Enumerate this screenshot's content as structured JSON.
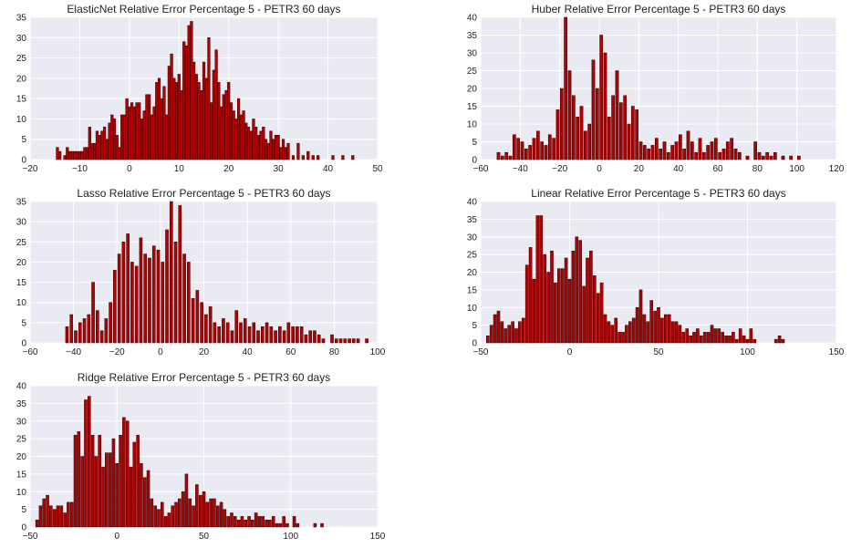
{
  "chart_data": [
    {
      "type": "bar",
      "title": "ElasticNet Relative Error Percentage 5 - PETR3 60 days",
      "xlabel": "",
      "ylabel": "",
      "xlim": [
        -20,
        50
      ],
      "ylim": [
        0,
        35
      ],
      "xticks": [
        -20,
        -10,
        0,
        10,
        20,
        30,
        40,
        50
      ],
      "yticks": [
        0,
        5,
        10,
        15,
        20,
        25,
        30,
        35
      ],
      "grid": true,
      "bin_width": 0.5,
      "x": [
        -14.5,
        -14,
        -13,
        -12.5,
        -12,
        -11.5,
        -11,
        -10.5,
        -10,
        -9.5,
        -9,
        -8.5,
        -8,
        -7.5,
        -7,
        -6.5,
        -6,
        -5.5,
        -5,
        -4.5,
        -4,
        -3.5,
        -3,
        -2.5,
        -2,
        -1.5,
        -1,
        -0.5,
        0,
        0.5,
        1,
        1.5,
        2,
        2.5,
        3,
        3.5,
        4,
        4.5,
        5,
        5.5,
        6,
        6.5,
        7,
        7.5,
        8,
        8.5,
        9,
        9.5,
        10,
        10.5,
        11,
        11.5,
        12,
        12.5,
        13,
        13.5,
        14,
        14.5,
        15,
        15.5,
        16,
        16.5,
        17,
        17.5,
        18,
        18.5,
        19,
        19.5,
        20,
        20.5,
        21,
        21.5,
        22,
        22.5,
        23,
        23.5,
        24,
        24.5,
        25,
        25.5,
        26,
        26.5,
        27,
        27.5,
        28,
        28.5,
        29,
        29.5,
        30,
        30.5,
        31,
        31.5,
        32,
        33,
        34,
        35,
        36,
        37,
        38,
        41,
        43,
        45
      ],
      "values": [
        3,
        2,
        1,
        3,
        2,
        2,
        2,
        2,
        2,
        2,
        3,
        3,
        8,
        4,
        4,
        7,
        6,
        7,
        8,
        5,
        9,
        11,
        10,
        6,
        3,
        11,
        11,
        15,
        13,
        14,
        13,
        14,
        14,
        10,
        12,
        16,
        16,
        11,
        13,
        19,
        20,
        15,
        18,
        11,
        23,
        26,
        20,
        19,
        21,
        17,
        29,
        28,
        33,
        34,
        24,
        21,
        19,
        17,
        24,
        20,
        30,
        14,
        22,
        27,
        19,
        13,
        16,
        17,
        19,
        14,
        12,
        10,
        15,
        11,
        12,
        9,
        8,
        7,
        10,
        8,
        6,
        7,
        8,
        5,
        4,
        7,
        5,
        6,
        6,
        3,
        5,
        3,
        4,
        1,
        4,
        1,
        2,
        1,
        1,
        1,
        1,
        1
      ]
    },
    {
      "type": "bar",
      "title": "Huber Relative Error Percentage 5 - PETR3 60 days",
      "xlabel": "",
      "ylabel": "",
      "xlim": [
        -60,
        120
      ],
      "ylim": [
        0,
        40
      ],
      "xticks": [
        -60,
        -40,
        -20,
        0,
        20,
        40,
        60,
        80,
        100,
        120
      ],
      "yticks": [
        0,
        5,
        10,
        15,
        20,
        25,
        30,
        35,
        40
      ],
      "grid": true,
      "bin_width": 1.5,
      "x": [
        -51,
        -49,
        -47,
        -45,
        -43,
        -41,
        -39,
        -37,
        -35,
        -33,
        -31,
        -29,
        -27,
        -25,
        -23,
        -21,
        -19,
        -17,
        -15,
        -13,
        -11,
        -9,
        -7,
        -5,
        -3,
        -1,
        1,
        3,
        5,
        7,
        9,
        11,
        13,
        15,
        17,
        19,
        21,
        23,
        25,
        27,
        29,
        31,
        33,
        35,
        37,
        39,
        41,
        43,
        45,
        47,
        49,
        51,
        53,
        55,
        57,
        59,
        61,
        63,
        65,
        67,
        69,
        71,
        75,
        79,
        81,
        83,
        85,
        87,
        89,
        93,
        97,
        101
      ],
      "values": [
        2,
        1,
        2,
        1,
        7,
        6,
        5,
        3,
        4,
        6,
        8,
        5,
        4,
        7,
        6,
        14,
        20,
        40,
        25,
        18,
        12,
        15,
        8,
        10,
        28,
        20,
        35,
        30,
        12,
        18,
        25,
        16,
        18,
        10,
        15,
        14,
        5,
        4,
        3,
        4,
        6,
        3,
        5,
        2,
        4,
        5,
        7,
        3,
        8,
        5,
        2,
        6,
        2,
        4,
        5,
        6,
        2,
        3,
        5,
        6,
        3,
        2,
        1,
        5,
        2,
        1,
        2,
        1,
        2,
        1,
        1,
        1
      ]
    },
    {
      "type": "bar",
      "title": "Lasso Relative Error Percentage 5 - PETR3 60 days",
      "xlabel": "",
      "ylabel": "",
      "xlim": [
        -60,
        100
      ],
      "ylim": [
        0,
        35
      ],
      "xticks": [
        -60,
        -40,
        -20,
        0,
        20,
        40,
        60,
        80,
        100
      ],
      "yticks": [
        0,
        5,
        10,
        15,
        20,
        25,
        30,
        35
      ],
      "grid": true,
      "bin_width": 1.3,
      "x": [
        -43,
        -41,
        -39,
        -37,
        -35,
        -33,
        -31,
        -29,
        -27,
        -25,
        -23,
        -21,
        -19,
        -17,
        -15,
        -13,
        -11,
        -9,
        -7,
        -5,
        -3,
        -1,
        1,
        3,
        5,
        7,
        9,
        11,
        13,
        15,
        17,
        19,
        21,
        23,
        25,
        27,
        29,
        31,
        33,
        35,
        37,
        39,
        41,
        43,
        45,
        47,
        49,
        51,
        53,
        55,
        57,
        59,
        61,
        63,
        65,
        67,
        69,
        71,
        73,
        75,
        79,
        81,
        83,
        85,
        87,
        89,
        91,
        95
      ],
      "values": [
        4,
        7,
        3,
        5,
        6,
        7,
        15,
        8,
        3,
        6,
        10,
        18,
        22,
        25,
        27,
        20,
        19,
        26,
        22,
        21,
        24,
        23,
        20,
        28,
        35,
        25,
        34,
        22,
        20,
        11,
        13,
        10,
        7,
        9,
        5,
        4,
        6,
        5,
        3,
        8,
        5,
        6,
        4,
        5,
        3,
        4,
        5,
        4,
        3,
        4,
        3,
        5,
        4,
        4,
        4,
        2,
        3,
        3,
        2,
        1,
        2,
        1,
        1,
        1,
        1,
        1,
        1,
        1
      ]
    },
    {
      "type": "bar",
      "title": "Linear Relative Error Percentage 5 - PETR3 60 days",
      "xlabel": "",
      "ylabel": "",
      "xlim": [
        -50,
        150
      ],
      "ylim": [
        0,
        40
      ],
      "xticks": [
        -50,
        0,
        50,
        100,
        150
      ],
      "yticks": [
        0,
        5,
        10,
        15,
        20,
        25,
        30,
        35,
        40
      ],
      "grid": true,
      "bin_width": 1.6,
      "x": [
        -46,
        -44,
        -42,
        -40,
        -38,
        -36,
        -34,
        -32,
        -30,
        -28,
        -26,
        -24,
        -22,
        -20,
        -18,
        -16,
        -14,
        -12,
        -10,
        -8,
        -6,
        -4,
        -2,
        0,
        2,
        4,
        6,
        8,
        10,
        12,
        14,
        16,
        18,
        20,
        22,
        24,
        26,
        28,
        30,
        32,
        34,
        36,
        38,
        40,
        42,
        44,
        46,
        48,
        50,
        52,
        54,
        56,
        58,
        60,
        62,
        64,
        66,
        68,
        70,
        72,
        74,
        76,
        78,
        80,
        82,
        84,
        86,
        88,
        90,
        92,
        94,
        96,
        98,
        100,
        102,
        104,
        106,
        108,
        110,
        112,
        114,
        116,
        118,
        120
      ],
      "values": [
        2,
        5,
        8,
        9,
        6,
        4,
        5,
        6,
        4,
        6,
        7,
        22,
        27,
        18,
        36,
        36,
        25,
        20,
        26,
        17,
        21,
        21,
        24,
        18,
        26,
        30,
        29,
        16,
        24,
        26,
        19,
        14,
        17,
        8,
        6,
        5,
        7,
        3,
        3,
        5,
        6,
        7,
        10,
        15,
        8,
        6,
        12,
        9,
        10,
        7,
        8,
        8,
        6,
        6,
        5,
        3,
        4,
        2,
        3,
        4,
        2,
        3,
        3,
        5,
        4,
        4,
        3,
        2,
        2,
        3,
        1,
        4,
        2,
        1,
        4,
        1,
        0,
        0,
        0,
        0,
        0,
        1,
        2,
        1
      ]
    },
    {
      "type": "bar",
      "title": "Ridge Relative Error Percentage 5 - PETR3 60 days",
      "xlabel": "",
      "ylabel": "",
      "xlim": [
        -50,
        150
      ],
      "ylim": [
        0,
        40
      ],
      "xticks": [
        -50,
        0,
        50,
        100,
        150
      ],
      "yticks": [
        0,
        5,
        10,
        15,
        20,
        25,
        30,
        35,
        40
      ],
      "grid": true,
      "bin_width": 1.6,
      "x": [
        -46,
        -44,
        -42,
        -40,
        -38,
        -36,
        -34,
        -32,
        -30,
        -28,
        -26,
        -24,
        -22,
        -20,
        -18,
        -16,
        -14,
        -12,
        -10,
        -8,
        -6,
        -4,
        -2,
        0,
        2,
        4,
        6,
        8,
        10,
        12,
        14,
        16,
        18,
        20,
        22,
        24,
        26,
        28,
        30,
        32,
        34,
        36,
        38,
        40,
        42,
        44,
        46,
        48,
        50,
        52,
        54,
        56,
        58,
        60,
        62,
        64,
        66,
        68,
        70,
        72,
        74,
        76,
        78,
        80,
        82,
        84,
        86,
        88,
        90,
        92,
        94,
        96,
        98,
        100,
        102,
        104,
        106,
        108,
        110,
        112,
        114,
        116,
        118,
        120
      ],
      "values": [
        2,
        6,
        8,
        9,
        6,
        5,
        6,
        6,
        4,
        7,
        7,
        26,
        27,
        20,
        36,
        37,
        26,
        20,
        26,
        17,
        21,
        21,
        25,
        18,
        26,
        31,
        30,
        17,
        24,
        26,
        18,
        14,
        16,
        8,
        6,
        5,
        7,
        3,
        4,
        6,
        7,
        8,
        10,
        15,
        8,
        6,
        12,
        9,
        10,
        7,
        8,
        8,
        6,
        7,
        5,
        3,
        4,
        3,
        2,
        3,
        2,
        3,
        2,
        4,
        3,
        3,
        2,
        2,
        3,
        1,
        1,
        3,
        1,
        0,
        3,
        1,
        0,
        0,
        0,
        0,
        1,
        0,
        1,
        0
      ]
    }
  ],
  "style": {
    "background": "#EAEAF2",
    "grid_color": "#FFFFFF",
    "bar_fill": "#B30000",
    "bar_edge": "#2a0000",
    "text_color": "#222222"
  }
}
